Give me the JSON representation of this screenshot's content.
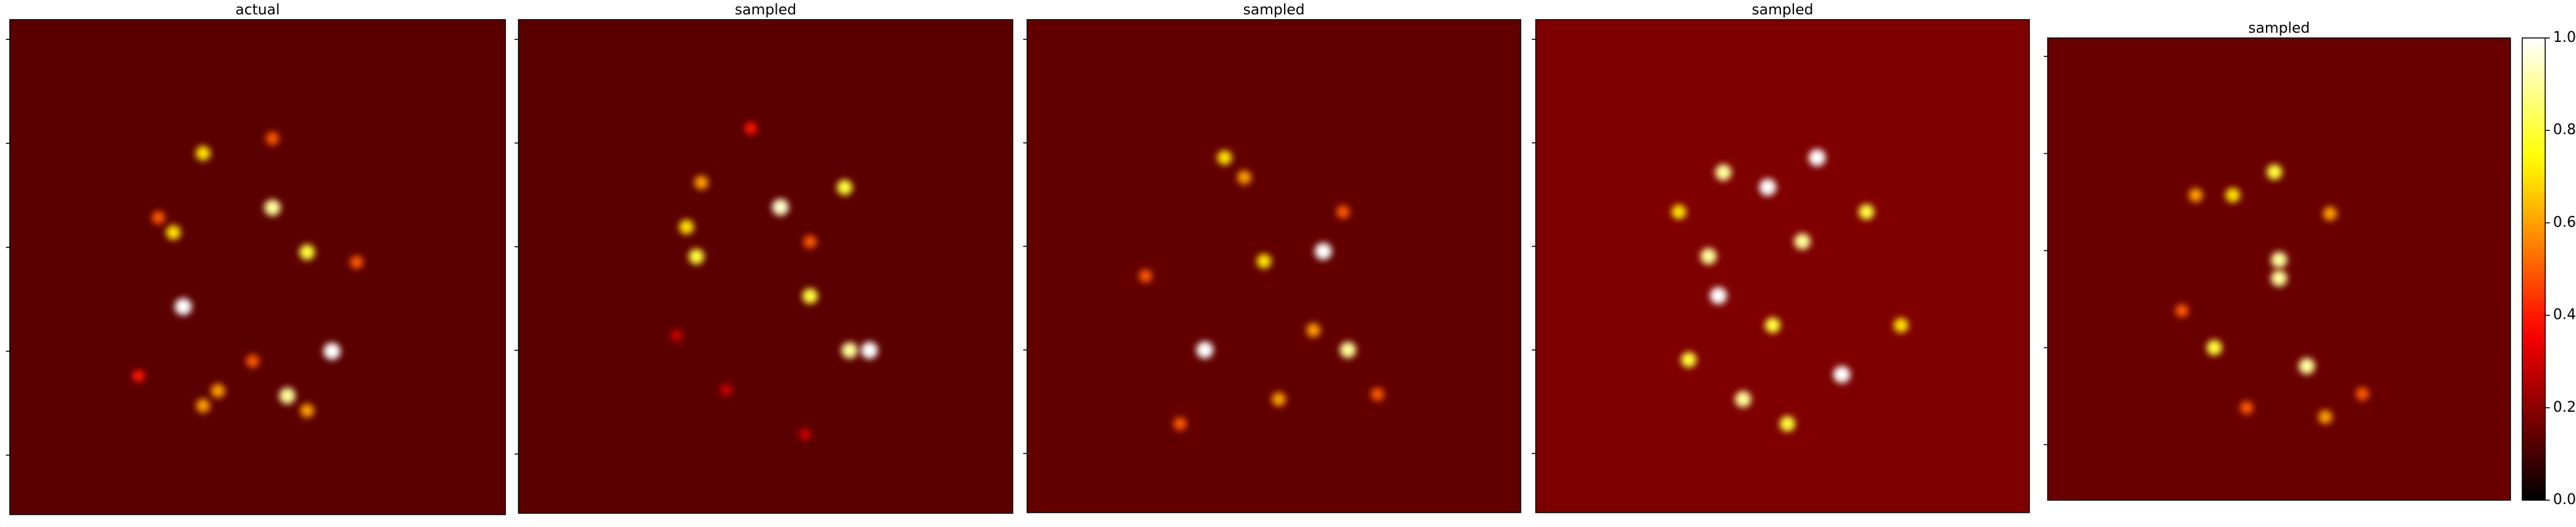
{
  "chart_data": {
    "type": "heatmap-panels",
    "colormap": "hot",
    "panels": [
      {
        "title": "actual",
        "background": 0.13,
        "spots": [
          {
            "x": 0.39,
            "y": 0.27,
            "v": 0.7
          },
          {
            "x": 0.53,
            "y": 0.24,
            "v": 0.5
          },
          {
            "x": 0.53,
            "y": 0.38,
            "v": 0.9
          },
          {
            "x": 0.33,
            "y": 0.43,
            "v": 0.7
          },
          {
            "x": 0.6,
            "y": 0.47,
            "v": 0.8
          },
          {
            "x": 0.35,
            "y": 0.58,
            "v": 1.0
          },
          {
            "x": 0.65,
            "y": 0.67,
            "v": 1.0
          },
          {
            "x": 0.56,
            "y": 0.76,
            "v": 0.9
          },
          {
            "x": 0.42,
            "y": 0.75,
            "v": 0.6
          },
          {
            "x": 0.39,
            "y": 0.78,
            "v": 0.6
          },
          {
            "x": 0.6,
            "y": 0.79,
            "v": 0.6
          },
          {
            "x": 0.49,
            "y": 0.69,
            "v": 0.5
          },
          {
            "x": 0.3,
            "y": 0.4,
            "v": 0.5
          },
          {
            "x": 0.7,
            "y": 0.49,
            "v": 0.5
          },
          {
            "x": 0.26,
            "y": 0.72,
            "v": 0.4
          }
        ]
      },
      {
        "title": "sampled",
        "background": 0.13,
        "spots": [
          {
            "x": 0.53,
            "y": 0.38,
            "v": 0.95
          },
          {
            "x": 0.66,
            "y": 0.34,
            "v": 0.8
          },
          {
            "x": 0.37,
            "y": 0.33,
            "v": 0.6
          },
          {
            "x": 0.34,
            "y": 0.42,
            "v": 0.7
          },
          {
            "x": 0.36,
            "y": 0.48,
            "v": 0.8
          },
          {
            "x": 0.59,
            "y": 0.45,
            "v": 0.5
          },
          {
            "x": 0.59,
            "y": 0.56,
            "v": 0.8
          },
          {
            "x": 0.67,
            "y": 0.67,
            "v": 0.9
          },
          {
            "x": 0.71,
            "y": 0.67,
            "v": 1.0
          },
          {
            "x": 0.47,
            "y": 0.22,
            "v": 0.4
          },
          {
            "x": 0.32,
            "y": 0.64,
            "v": 0.3
          },
          {
            "x": 0.42,
            "y": 0.75,
            "v": 0.3
          },
          {
            "x": 0.58,
            "y": 0.84,
            "v": 0.3
          }
        ]
      },
      {
        "title": "sampled",
        "background": 0.14,
        "spots": [
          {
            "x": 0.6,
            "y": 0.47,
            "v": 1.0
          },
          {
            "x": 0.36,
            "y": 0.67,
            "v": 1.0
          },
          {
            "x": 0.65,
            "y": 0.67,
            "v": 0.9
          },
          {
            "x": 0.4,
            "y": 0.28,
            "v": 0.7
          },
          {
            "x": 0.48,
            "y": 0.49,
            "v": 0.7
          },
          {
            "x": 0.31,
            "y": 0.82,
            "v": 0.5
          },
          {
            "x": 0.51,
            "y": 0.77,
            "v": 0.6
          },
          {
            "x": 0.64,
            "y": 0.39,
            "v": 0.5
          },
          {
            "x": 0.24,
            "y": 0.52,
            "v": 0.5
          },
          {
            "x": 0.71,
            "y": 0.76,
            "v": 0.5
          },
          {
            "x": 0.44,
            "y": 0.32,
            "v": 0.6
          },
          {
            "x": 0.58,
            "y": 0.63,
            "v": 0.6
          }
        ]
      },
      {
        "title": "sampled",
        "background": 0.18,
        "spots": [
          {
            "x": 0.37,
            "y": 0.56,
            "v": 1.0
          },
          {
            "x": 0.47,
            "y": 0.34,
            "v": 1.0
          },
          {
            "x": 0.57,
            "y": 0.28,
            "v": 1.0
          },
          {
            "x": 0.62,
            "y": 0.72,
            "v": 1.0
          },
          {
            "x": 0.42,
            "y": 0.77,
            "v": 0.9
          },
          {
            "x": 0.38,
            "y": 0.31,
            "v": 0.9
          },
          {
            "x": 0.35,
            "y": 0.48,
            "v": 0.9
          },
          {
            "x": 0.67,
            "y": 0.39,
            "v": 0.8
          },
          {
            "x": 0.48,
            "y": 0.62,
            "v": 0.8
          },
          {
            "x": 0.74,
            "y": 0.62,
            "v": 0.7
          },
          {
            "x": 0.31,
            "y": 0.69,
            "v": 0.8
          },
          {
            "x": 0.54,
            "y": 0.45,
            "v": 0.9
          },
          {
            "x": 0.51,
            "y": 0.82,
            "v": 0.8
          },
          {
            "x": 0.29,
            "y": 0.39,
            "v": 0.7
          }
        ]
      },
      {
        "title": "sampled",
        "background": 0.15,
        "spots": [
          {
            "x": 0.5,
            "y": 0.48,
            "v": 0.9
          },
          {
            "x": 0.5,
            "y": 0.52,
            "v": 0.9
          },
          {
            "x": 0.56,
            "y": 0.71,
            "v": 0.9
          },
          {
            "x": 0.36,
            "y": 0.67,
            "v": 0.8
          },
          {
            "x": 0.49,
            "y": 0.29,
            "v": 0.8
          },
          {
            "x": 0.4,
            "y": 0.34,
            "v": 0.7
          },
          {
            "x": 0.61,
            "y": 0.38,
            "v": 0.6
          },
          {
            "x": 0.32,
            "y": 0.34,
            "v": 0.6
          },
          {
            "x": 0.6,
            "y": 0.82,
            "v": 0.6
          },
          {
            "x": 0.68,
            "y": 0.77,
            "v": 0.5
          },
          {
            "x": 0.29,
            "y": 0.59,
            "v": 0.5
          },
          {
            "x": 0.43,
            "y": 0.8,
            "v": 0.5
          }
        ]
      }
    ],
    "colorbar": {
      "lim": [
        0,
        1
      ],
      "ticks": [
        {
          "value": 0,
          "label": "0.0"
        },
        0.2,
        0.4,
        0.6,
        0.8,
        {
          "value": 1,
          "label": "1.0"
        }
      ]
    }
  }
}
